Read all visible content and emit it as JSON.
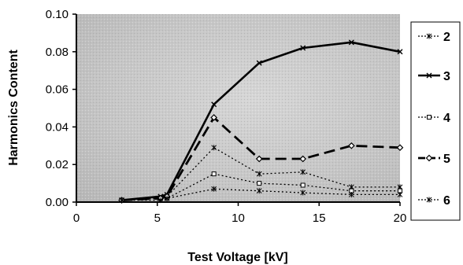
{
  "chart_data": {
    "type": "line",
    "title": "",
    "xlabel": "Test Voltage [kV]",
    "ylabel": "Harmonics Content",
    "xlim": [
      0,
      20
    ],
    "ylim": [
      0,
      0.1
    ],
    "x_ticks": [
      "0",
      "5",
      "10",
      "15",
      "20"
    ],
    "y_ticks": [
      "0.00",
      "0.02",
      "0.04",
      "0.06",
      "0.08",
      "0.10"
    ],
    "grid": false,
    "legend_position": "right",
    "x": [
      2.8,
      5.2,
      5.6,
      8.5,
      11.3,
      14.0,
      17.0,
      20.0
    ],
    "series": [
      {
        "name": "2",
        "style": "dotted",
        "marker": "star",
        "values": [
          0.001,
          0.002,
          0.003,
          0.029,
          0.015,
          0.016,
          0.008,
          0.008
        ]
      },
      {
        "name": "3",
        "style": "solid",
        "marker": "x",
        "values": [
          0.001,
          0.003,
          0.004,
          0.052,
          0.074,
          0.082,
          0.085,
          0.08
        ]
      },
      {
        "name": "4",
        "style": "dotted",
        "marker": "square",
        "values": [
          0.001,
          0.002,
          0.002,
          0.015,
          0.01,
          0.009,
          0.006,
          0.006
        ]
      },
      {
        "name": "5",
        "style": "dashed",
        "marker": "diamond",
        "values": [
          0.001,
          0.002,
          0.003,
          0.045,
          0.023,
          0.023,
          0.03,
          0.029
        ]
      },
      {
        "name": "6",
        "style": "dotted",
        "marker": "star",
        "values": [
          0.001,
          0.001,
          0.002,
          0.007,
          0.006,
          0.005,
          0.004,
          0.004
        ]
      }
    ]
  }
}
